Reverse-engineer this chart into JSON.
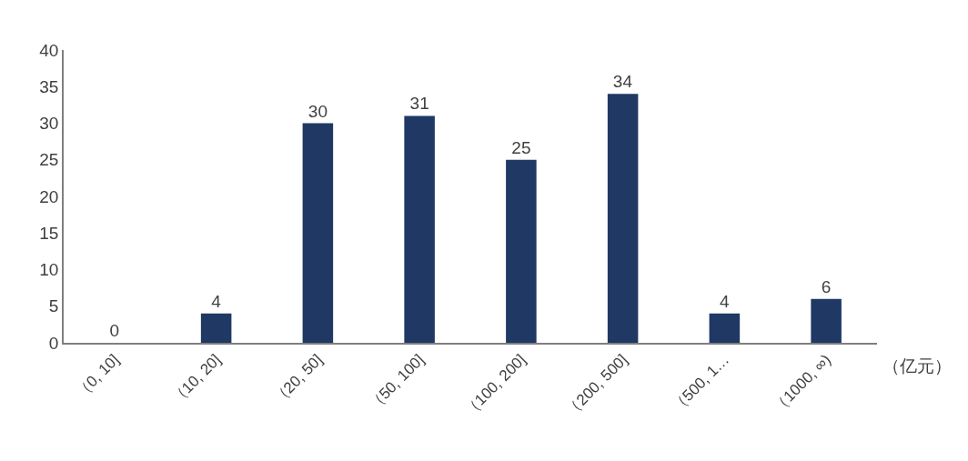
{
  "chart_data": {
    "type": "bar",
    "xlabel": "（亿元）",
    "categories": [
      "（0, 10]",
      "（10, 20]",
      "（20, 50]",
      "（50, 100]",
      "（100, 200]",
      "（200, 500]",
      "（500, 1…",
      "（1000, ∞)"
    ],
    "values": [
      0,
      4,
      30,
      31,
      25,
      34,
      4,
      6
    ],
    "color": "#1f3864",
    "ylim": [
      0,
      40
    ],
    "yticks": [
      0,
      5,
      10,
      15,
      20,
      25,
      30,
      35,
      40
    ],
    "legend": false,
    "data_labels": true
  }
}
